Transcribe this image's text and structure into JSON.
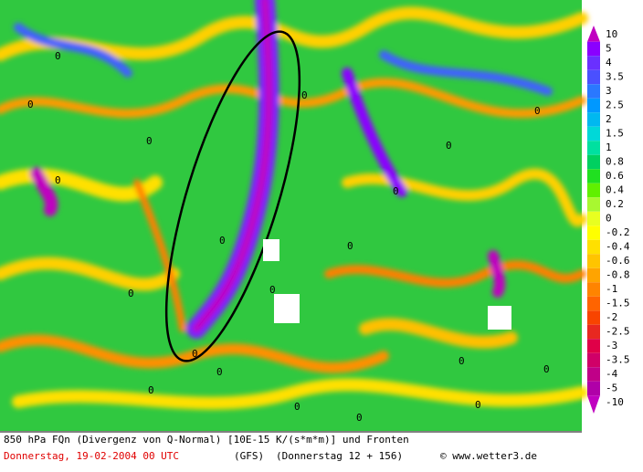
{
  "legend": {
    "levels": [
      {
        "label": "10",
        "color": "#c000c0"
      },
      {
        "label": "5",
        "color": "#8a00ff"
      },
      {
        "label": "4",
        "color": "#6a30ff"
      },
      {
        "label": "3.5",
        "color": "#4a50ff"
      },
      {
        "label": "3",
        "color": "#2a78ff"
      },
      {
        "label": "2.5",
        "color": "#0098ff"
      },
      {
        "label": "2",
        "color": "#00b8f0"
      },
      {
        "label": "1.5",
        "color": "#00d8d8"
      },
      {
        "label": "1",
        "color": "#00e0a0"
      },
      {
        "label": "0.8",
        "color": "#00d060"
      },
      {
        "label": "0.6",
        "color": "#20e020"
      },
      {
        "label": "0.4",
        "color": "#60f000"
      },
      {
        "label": "0.2",
        "color": "#a8f830"
      },
      {
        "label": "0",
        "color": "#e8ff20"
      },
      {
        "label": "-0.2",
        "color": "#ffff00"
      },
      {
        "label": "-0.4",
        "color": "#ffe000"
      },
      {
        "label": "-0.6",
        "color": "#ffc400"
      },
      {
        "label": "-0.8",
        "color": "#ffa400"
      },
      {
        "label": "-1",
        "color": "#ff8400"
      },
      {
        "label": "-1.5",
        "color": "#ff6400"
      },
      {
        "label": "-2",
        "color": "#f84400"
      },
      {
        "label": "-2.5",
        "color": "#e82820"
      },
      {
        "label": "-3",
        "color": "#e00048"
      },
      {
        "label": "-3.5",
        "color": "#d00068"
      },
      {
        "label": "-4",
        "color": "#c00088"
      },
      {
        "label": "-5",
        "color": "#b000a8"
      },
      {
        "label": "-10",
        "color": "#c000c0"
      }
    ]
  },
  "map": {
    "contour_labels": [
      "0",
      "0",
      "0",
      "0",
      "0",
      "0",
      "0",
      "0",
      "0",
      "0",
      "0",
      "0",
      "0",
      "0",
      "0",
      "0",
      "0",
      "0",
      "0",
      "0"
    ]
  },
  "footer": {
    "title": "850 hPa FQn (Divergenz von Q-Normal) [10E-15 K/(s*m*m)] und Fronten",
    "date": "Donnerstag, 19-02-2004  00 UTC",
    "model": "(GFS)",
    "run": "(Donnerstag 12 + 156)",
    "copyright": "© www.wetter3.de"
  }
}
